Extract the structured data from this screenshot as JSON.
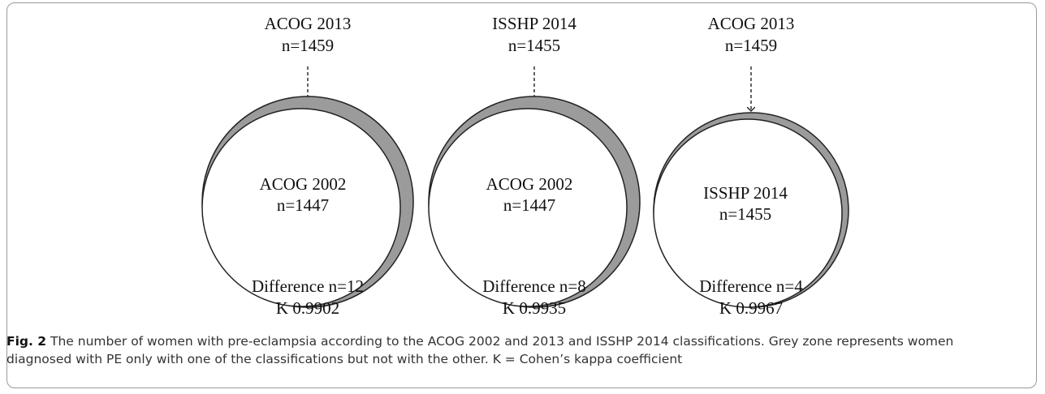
{
  "panels": [
    {
      "top_label": "ACOG 2013",
      "top_n": "n=1459",
      "inner_label": "ACOG 2002",
      "inner_n": "n=1447",
      "difference": "Difference n=12",
      "kappa": "K 0.9902"
    },
    {
      "top_label": "ISSHP 2014",
      "top_n": "n=1455",
      "inner_label": "ACOG 2002",
      "inner_n": "n=1447",
      "difference": "Difference n=8",
      "kappa": "K 0.9935"
    },
    {
      "top_label": "ACOG 2013",
      "top_n": "n=1459",
      "inner_label": "ISSHP 2014",
      "inner_n": "n=1455",
      "difference": "Difference n=4",
      "kappa": "K 0.9967"
    }
  ],
  "caption": {
    "label": "Fig. 2",
    "text": "The number of women with pre-eclampsia according to the ACOG 2002 and 2013 and ISSHP 2014 classifications. Grey zone represents women diagnosed with PE only with one of the classifications but not with the other. K = Cohen’s kappa coefficient"
  },
  "colors": {
    "grey_zone": "#9b9b9b",
    "outline": "#222222",
    "frame": "#9a9a9a"
  }
}
